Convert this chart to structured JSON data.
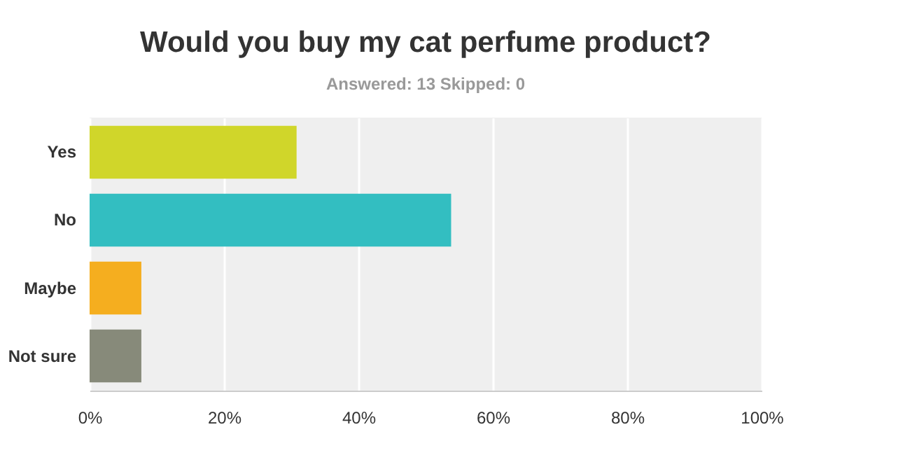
{
  "chart_data": {
    "type": "bar",
    "orientation": "horizontal",
    "title": "Would you buy my cat perfume product?",
    "subtitle": "Answered: 13    Skipped: 0",
    "categories": [
      "Yes",
      "No",
      "Maybe",
      "Not sure"
    ],
    "values": [
      30.8,
      53.8,
      7.7,
      7.7
    ],
    "colors": [
      "#d0d62a",
      "#33bec1",
      "#f5ae1f",
      "#878a7a"
    ],
    "xlim": [
      0,
      100
    ],
    "xticks": [
      {
        "value": 0,
        "label": "0%"
      },
      {
        "value": 20,
        "label": "20%"
      },
      {
        "value": 40,
        "label": "40%"
      },
      {
        "value": 60,
        "label": "60%"
      },
      {
        "value": 80,
        "label": "80%"
      },
      {
        "value": 100,
        "label": "100%"
      }
    ],
    "grid": "x",
    "legend": false
  }
}
